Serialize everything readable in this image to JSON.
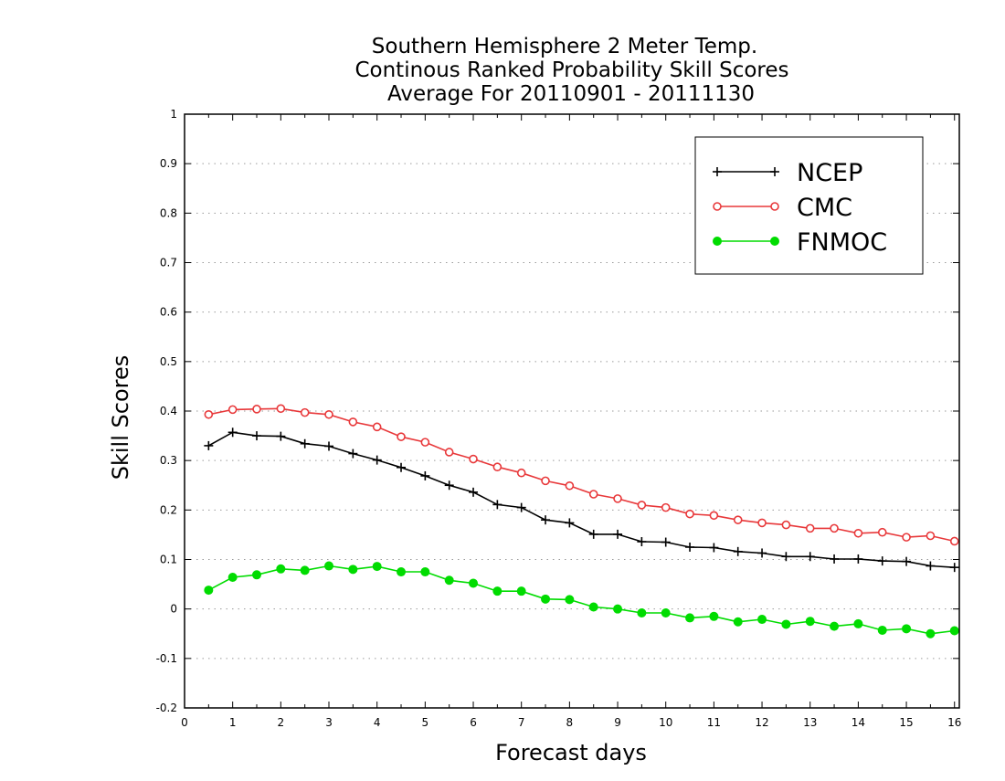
{
  "chart_data": {
    "type": "line",
    "title": [
      "Southern Hemisphere 2 Meter Temp.",
      "Continous Ranked Probability Skill Scores",
      "Average For 20110901 - 20111130"
    ],
    "xlabel": "Forecast days",
    "ylabel": "Skill Scores",
    "xlim": [
      0,
      16.1
    ],
    "ylim": [
      -0.2,
      1
    ],
    "xticks": [
      "0",
      "1",
      "2",
      "3",
      "4",
      "5",
      "6",
      "7",
      "8",
      "9",
      "10",
      "11",
      "12",
      "13",
      "14",
      "15",
      "16"
    ],
    "yticks": [
      "-0.2",
      "-0.1",
      "0",
      "0.1",
      "0.2",
      "0.3",
      "0.4",
      "0.5",
      "0.6",
      "0.7",
      "0.8",
      "0.9",
      "1"
    ],
    "grid": "horizontal dotted",
    "legend_position": "top-right",
    "x": [
      0.5,
      1,
      1.5,
      2,
      2.5,
      3,
      3.5,
      4,
      4.5,
      5,
      5.5,
      6,
      6.5,
      7,
      7.5,
      8,
      8.5,
      9,
      9.5,
      10,
      10.5,
      11,
      11.5,
      12,
      12.5,
      13,
      13.5,
      14,
      14.5,
      15,
      15.5,
      16
    ],
    "series": [
      {
        "name": "NCEP",
        "color": "#000000",
        "marker": "plus",
        "values": [
          0.33,
          0.357,
          0.35,
          0.349,
          0.334,
          0.329,
          0.314,
          0.301,
          0.286,
          0.269,
          0.25,
          0.236,
          0.211,
          0.205,
          0.18,
          0.174,
          0.151,
          0.151,
          0.136,
          0.135,
          0.125,
          0.124,
          0.116,
          0.113,
          0.106,
          0.106,
          0.101,
          0.101,
          0.097,
          0.096,
          0.087,
          0.084
        ]
      },
      {
        "name": "CMC",
        "color": "#e8383a",
        "marker": "open-circle",
        "values": [
          0.393,
          0.403,
          0.404,
          0.405,
          0.397,
          0.393,
          0.378,
          0.368,
          0.348,
          0.337,
          0.317,
          0.303,
          0.287,
          0.275,
          0.259,
          0.249,
          0.232,
          0.223,
          0.21,
          0.205,
          0.192,
          0.189,
          0.18,
          0.174,
          0.17,
          0.163,
          0.163,
          0.153,
          0.155,
          0.145,
          0.148,
          0.137
        ]
      },
      {
        "name": "FNMOC",
        "color": "#00dc00",
        "marker": "filled-circle",
        "values": [
          0.038,
          0.064,
          0.069,
          0.081,
          0.078,
          0.087,
          0.08,
          0.086,
          0.075,
          0.075,
          0.058,
          0.052,
          0.036,
          0.036,
          0.02,
          0.019,
          0.004,
          0.0,
          -0.008,
          -0.008,
          -0.018,
          -0.015,
          -0.026,
          -0.021,
          -0.031,
          -0.025,
          -0.035,
          -0.03,
          -0.043,
          -0.04,
          -0.05,
          -0.044
        ]
      }
    ]
  }
}
